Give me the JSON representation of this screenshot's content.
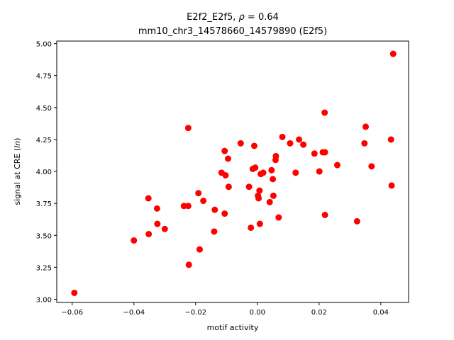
{
  "chart_data": {
    "type": "scatter",
    "title_line1_prefix": "E2f2_E2f5, ",
    "title_line1_rho": "ρ",
    "title_line1_suffix": " = 0.64",
    "title_line2": "mm10_chr3_14578660_14579890 (E2f5)",
    "xlabel": "motif activity",
    "ylabel_prefix": "signal at CRE (",
    "ylabel_italic": "ln",
    "ylabel_suffix": ")",
    "xlim": [
      -0.065,
      0.049
    ],
    "ylim": [
      2.975,
      5.02
    ],
    "xticks": [
      -0.06,
      -0.04,
      -0.02,
      0.0,
      0.02,
      0.04
    ],
    "xtick_labels": [
      "−0.06",
      "−0.04",
      "−0.02",
      "0.00",
      "0.02",
      "0.04"
    ],
    "yticks": [
      3.0,
      3.25,
      3.5,
      3.75,
      4.0,
      4.25,
      4.5,
      4.75,
      5.0
    ],
    "ytick_labels": [
      "3.00",
      "3.25",
      "3.50",
      "3.75",
      "4.00",
      "4.25",
      "4.50",
      "4.75",
      "5.00"
    ],
    "grid": false,
    "marker_color": "#ff0000",
    "points": [
      {
        "x": -0.0593,
        "y": 3.05
      },
      {
        "x": -0.04,
        "y": 3.46
      },
      {
        "x": -0.0353,
        "y": 3.79
      },
      {
        "x": -0.0352,
        "y": 3.51
      },
      {
        "x": -0.0325,
        "y": 3.71
      },
      {
        "x": -0.0324,
        "y": 3.59
      },
      {
        "x": -0.03,
        "y": 3.55
      },
      {
        "x": -0.0238,
        "y": 3.73
      },
      {
        "x": -0.0224,
        "y": 4.34
      },
      {
        "x": -0.0224,
        "y": 3.73
      },
      {
        "x": -0.0222,
        "y": 3.27
      },
      {
        "x": -0.0191,
        "y": 3.83
      },
      {
        "x": -0.0187,
        "y": 3.39
      },
      {
        "x": -0.0175,
        "y": 3.77
      },
      {
        "x": -0.014,
        "y": 3.53
      },
      {
        "x": -0.0138,
        "y": 3.7
      },
      {
        "x": -0.0116,
        "y": 3.99
      },
      {
        "x": -0.0106,
        "y": 4.16
      },
      {
        "x": -0.0106,
        "y": 3.67
      },
      {
        "x": -0.0103,
        "y": 3.97
      },
      {
        "x": -0.0095,
        "y": 4.1
      },
      {
        "x": -0.0093,
        "y": 3.88
      },
      {
        "x": -0.0054,
        "y": 4.22
      },
      {
        "x": -0.0027,
        "y": 3.88
      },
      {
        "x": -0.0021,
        "y": 3.56
      },
      {
        "x": -0.0015,
        "y": 4.02
      },
      {
        "x": -0.001,
        "y": 4.2
      },
      {
        "x": -0.0007,
        "y": 4.03
      },
      {
        "x": 0.0002,
        "y": 3.81
      },
      {
        "x": 0.0004,
        "y": 3.79
      },
      {
        "x": 0.0007,
        "y": 3.85
      },
      {
        "x": 0.0008,
        "y": 3.59
      },
      {
        "x": 0.0011,
        "y": 3.98
      },
      {
        "x": 0.0019,
        "y": 3.99
      },
      {
        "x": 0.004,
        "y": 3.76
      },
      {
        "x": 0.0046,
        "y": 4.01
      },
      {
        "x": 0.005,
        "y": 3.94
      },
      {
        "x": 0.0052,
        "y": 3.81
      },
      {
        "x": 0.0059,
        "y": 4.09
      },
      {
        "x": 0.006,
        "y": 4.12
      },
      {
        "x": 0.0069,
        "y": 3.64
      },
      {
        "x": 0.0081,
        "y": 4.27
      },
      {
        "x": 0.0106,
        "y": 4.22
      },
      {
        "x": 0.0124,
        "y": 3.99
      },
      {
        "x": 0.0135,
        "y": 4.25
      },
      {
        "x": 0.0149,
        "y": 4.21
      },
      {
        "x": 0.0185,
        "y": 4.14
      },
      {
        "x": 0.0201,
        "y": 4.0
      },
      {
        "x": 0.0212,
        "y": 4.15
      },
      {
        "x": 0.0218,
        "y": 4.46
      },
      {
        "x": 0.0219,
        "y": 4.15
      },
      {
        "x": 0.0219,
        "y": 3.66
      },
      {
        "x": 0.0259,
        "y": 4.05
      },
      {
        "x": 0.0323,
        "y": 3.61
      },
      {
        "x": 0.0347,
        "y": 4.22
      },
      {
        "x": 0.0351,
        "y": 4.35
      },
      {
        "x": 0.037,
        "y": 4.04
      },
      {
        "x": 0.0433,
        "y": 4.25
      },
      {
        "x": 0.0435,
        "y": 3.89
      },
      {
        "x": 0.044,
        "y": 4.92
      }
    ]
  }
}
